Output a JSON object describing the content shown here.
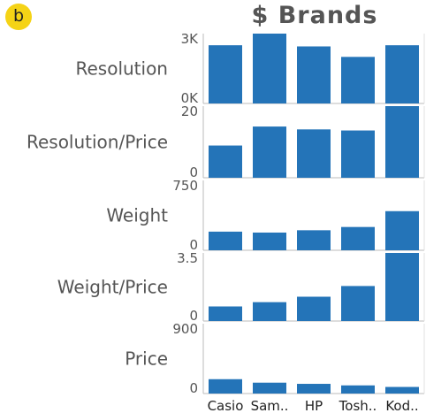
{
  "panel": {
    "badge": "b"
  },
  "header": {
    "title": "$ Brands"
  },
  "chart_data": {
    "type": "bar",
    "categories": [
      "Casio",
      "Sam..",
      "HP",
      "Tosh..",
      "Kod.."
    ],
    "series": [
      {
        "name": "Resolution",
        "values": [
          2500,
          3000,
          2450,
          2000,
          2500
        ],
        "ylim": [
          0,
          3000
        ],
        "tick_labels": [
          "0K",
          "3K"
        ]
      },
      {
        "name": "Resolution/Price",
        "values": [
          9,
          14.3,
          13.5,
          13.2,
          20
        ],
        "ylim": [
          0,
          20
        ],
        "tick_labels": [
          "0",
          "20"
        ]
      },
      {
        "name": "Weight",
        "values": [
          200,
          190,
          215,
          250,
          420
        ],
        "ylim": [
          0,
          750
        ],
        "tick_labels": [
          "0",
          "750"
        ]
      },
      {
        "name": "Weight/Price",
        "values": [
          0.75,
          0.97,
          1.25,
          1.8,
          3.5
        ],
        "ylim": [
          0,
          3.5
        ],
        "tick_labels": [
          "0",
          "3.5"
        ]
      },
      {
        "name": "Price",
        "values": [
          185,
          140,
          125,
          105,
          85
        ],
        "ylim": [
          0,
          900
        ],
        "tick_labels": [
          "0",
          "900"
        ]
      }
    ],
    "bar_color": "#2474b8",
    "grid": false
  }
}
